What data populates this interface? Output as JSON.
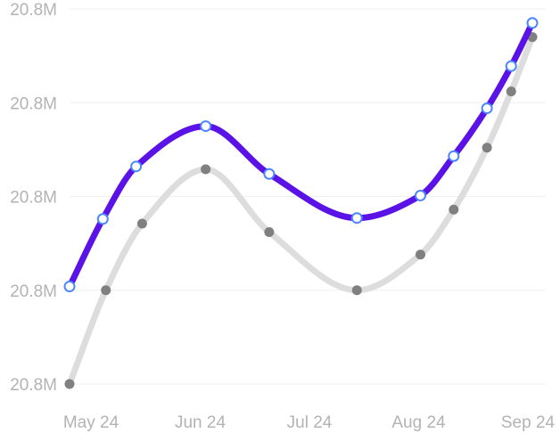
{
  "chart_data": {
    "type": "line",
    "x": [
      "2024-05-01",
      "2024-05-12",
      "2024-05-23",
      "2024-06-15",
      "2024-07-06",
      "2024-08-04",
      "2024-08-25",
      "2024-09-05",
      "2024-09-16",
      "2024-09-24",
      "2024-10-01"
    ],
    "x_ticks": [
      "May 24",
      "Jun 24",
      "Jul 24",
      "Aug 24",
      "Sep 24"
    ],
    "y_ticks": [
      "20.8M",
      "20.8M",
      "20.8M",
      "20.8M",
      "20.8M"
    ],
    "ylim": [
      0,
      4
    ],
    "grid": true,
    "series": [
      {
        "color": "#5b12e6",
        "marker_fill": "#ffffff",
        "marker_stroke": "#4a86ff",
        "x": [
          "2024-05-01",
          "2024-05-12",
          "2024-05-23",
          "2024-06-15",
          "2024-07-06",
          "2024-08-04",
          "2024-08-25",
          "2024-09-05",
          "2024-09-16",
          "2024-09-24",
          "2024-10-01"
        ],
        "values": [
          1.04,
          1.76,
          2.32,
          2.75,
          2.24,
          1.77,
          2.01,
          2.43,
          2.94,
          3.39,
          3.85
        ]
      },
      {
        "color": "#dddddd",
        "marker_fill": "#808080",
        "x": [
          "2024-05-01",
          "2024-05-13",
          "2024-05-25",
          "2024-06-15",
          "2024-07-06",
          "2024-08-04",
          "2024-08-25",
          "2024-09-05",
          "2024-09-16",
          "2024-09-24",
          "2024-10-01"
        ],
        "values": [
          0.0,
          1.0,
          1.71,
          2.29,
          1.62,
          1.0,
          1.38,
          1.86,
          2.52,
          3.12,
          3.7
        ]
      }
    ]
  }
}
